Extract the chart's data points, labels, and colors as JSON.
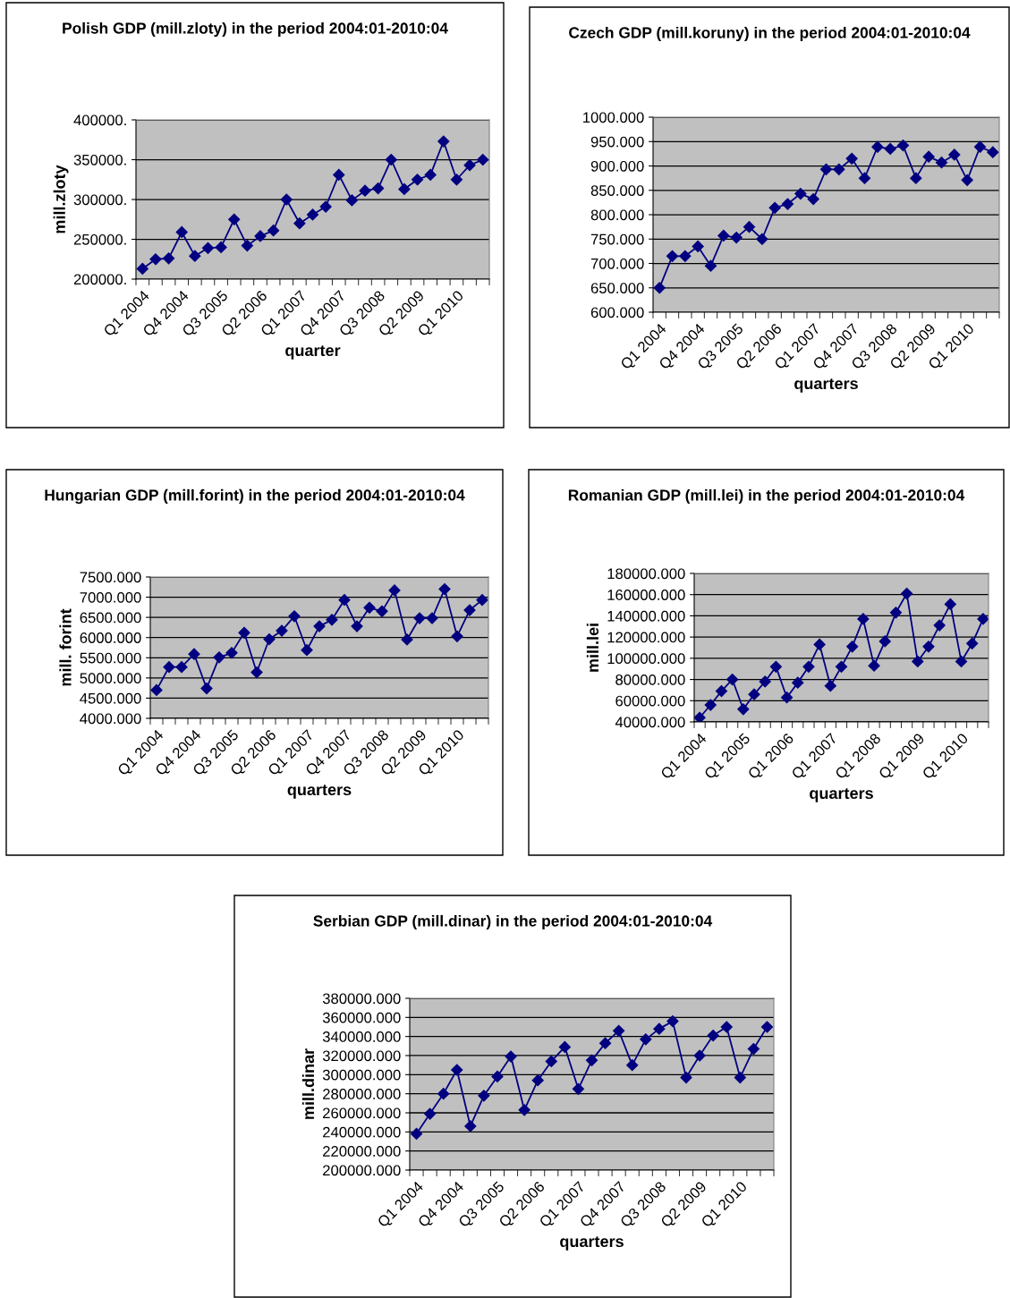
{
  "chart_data": [
    {
      "type": "line",
      "title": "Polish GDP (mill.zloty) in the period 2004:01-2010:04",
      "xlabel": "quarter",
      "ylabel": "mill.zloty",
      "marker": "diamond",
      "grid": "y",
      "categories": [
        "Q1 2004",
        null,
        null,
        "Q4 2004",
        null,
        null,
        "Q3 2005",
        null,
        null,
        "Q2 2006",
        null,
        null,
        "Q1 2007",
        null,
        null,
        "Q4 2007",
        null,
        null,
        "Q3 2008",
        null,
        null,
        "Q2 2009",
        null,
        null,
        "Q1 2010",
        null,
        null
      ],
      "ylim": [
        200000,
        400000
      ],
      "yticks": [
        {
          "value": 200000,
          "label": "200000."
        },
        {
          "value": 250000,
          "label": "250000."
        },
        {
          "value": 300000,
          "label": "300000."
        },
        {
          "value": 350000,
          "label": "350000."
        },
        {
          "value": 400000,
          "label": "400000."
        }
      ],
      "series": [
        {
          "color": "#000080",
          "values": [
            213000,
            225000,
            226000,
            259000,
            229000,
            239000,
            240000,
            275000,
            242000,
            254000,
            261000,
            300000,
            270000,
            281000,
            291000,
            331000,
            299000,
            311000,
            314000,
            350000,
            313000,
            325000,
            331000,
            373000,
            325000,
            343000,
            350000
          ]
        }
      ]
    },
    {
      "type": "line",
      "title": "Czech GDP (mill.koruny) in the period 2004:01-2010:04",
      "xlabel": "quarters",
      "marker": "diamond",
      "grid": "y",
      "categories": [
        "Q1 2004",
        null,
        null,
        "Q4 2004",
        null,
        null,
        "Q3 2005",
        null,
        null,
        "Q2 2006",
        null,
        null,
        "Q1 2007",
        null,
        null,
        "Q4 2007",
        null,
        null,
        "Q3 2008",
        null,
        null,
        "Q2 2009",
        null,
        null,
        "Q1 2010",
        null,
        null
      ],
      "ylim": [
        600,
        1000
      ],
      "yticks": [
        {
          "value": 600,
          "label": "600.000"
        },
        {
          "value": 650,
          "label": "650.000"
        },
        {
          "value": 700,
          "label": "700.000"
        },
        {
          "value": 750,
          "label": "750.000"
        },
        {
          "value": 800,
          "label": "800.000"
        },
        {
          "value": 850,
          "label": "850.000"
        },
        {
          "value": 900,
          "label": "900.000"
        },
        {
          "value": 950,
          "label": "950.000"
        },
        {
          "value": 1000,
          "label": "1000.000"
        }
      ],
      "series": [
        {
          "color": "#000080",
          "values": [
            650,
            715,
            715,
            735,
            695,
            757,
            753,
            775,
            750,
            814,
            822,
            843,
            832,
            893,
            893,
            915,
            875,
            939,
            935,
            942,
            875,
            919,
            907,
            923,
            871,
            939,
            928
          ]
        }
      ]
    },
    {
      "type": "line",
      "title": "Hungarian GDP (mill.forint) in the period 2004:01-2010:04",
      "xlabel": "quarters",
      "ylabel": "mill. forint",
      "marker": "diamond",
      "grid": "y",
      "categories": [
        "Q1 2004",
        null,
        null,
        "Q4 2004",
        null,
        null,
        "Q3 2005",
        null,
        null,
        "Q2 2006",
        null,
        null,
        "Q1 2007",
        null,
        null,
        "Q4 2007",
        null,
        null,
        "Q3 2008",
        null,
        null,
        "Q2 2009",
        null,
        null,
        "Q1 2010",
        null,
        null
      ],
      "ylim": [
        4000,
        7500
      ],
      "yticks": [
        {
          "value": 4000,
          "label": "4000.000"
        },
        {
          "value": 4500,
          "label": "4500.000"
        },
        {
          "value": 5000,
          "label": "5000.000"
        },
        {
          "value": 5500,
          "label": "5500.000"
        },
        {
          "value": 6000,
          "label": "6000.000"
        },
        {
          "value": 6500,
          "label": "6500.000"
        },
        {
          "value": 7000,
          "label": "7000.000"
        },
        {
          "value": 7500,
          "label": "7500.000"
        }
      ],
      "series": [
        {
          "color": "#000080",
          "values": [
            4700,
            5270,
            5270,
            5590,
            4740,
            5510,
            5620,
            6120,
            5140,
            5960,
            6170,
            6530,
            5690,
            6280,
            6440,
            6930,
            6280,
            6740,
            6650,
            7170,
            5950,
            6480,
            6480,
            7200,
            6030,
            6680,
            6930
          ]
        }
      ]
    },
    {
      "type": "line",
      "title": "Romanian GDP (mill.lei) in the period 2004:01-2010:04",
      "xlabel": "quarters",
      "ylabel": "mill.lei",
      "marker": "diamond",
      "grid": "y",
      "categories": [
        "Q1 2004",
        null,
        null,
        null,
        "Q1 2005",
        null,
        null,
        null,
        "Q1 2006",
        null,
        null,
        null,
        "Q1 2007",
        null,
        null,
        null,
        "Q1 2008",
        null,
        null,
        null,
        "Q1 2009",
        null,
        null,
        null,
        "Q1 2010",
        null,
        null
      ],
      "ylim": [
        40000,
        180000
      ],
      "yticks": [
        {
          "value": 40000,
          "label": "40000.000"
        },
        {
          "value": 60000,
          "label": "60000.000"
        },
        {
          "value": 80000,
          "label": "80000.000"
        },
        {
          "value": 100000,
          "label": "100000.000"
        },
        {
          "value": 120000,
          "label": "120000.000"
        },
        {
          "value": 140000,
          "label": "140000.000"
        },
        {
          "value": 160000,
          "label": "160000.000"
        },
        {
          "value": 180000,
          "label": "180000.000"
        }
      ],
      "series": [
        {
          "color": "#000080",
          "values": [
            44000,
            56000,
            69000,
            80000,
            52000,
            66000,
            78000,
            92000,
            63000,
            77000,
            92000,
            113000,
            74000,
            92000,
            111000,
            137000,
            93000,
            116000,
            143000,
            161000,
            97000,
            111000,
            131000,
            151000,
            97000,
            114000,
            137000
          ]
        }
      ]
    },
    {
      "type": "line",
      "title": "Serbian GDP (mill.dinar) in the period 2004:01-2010:04",
      "xlabel": "quarters",
      "ylabel": "mill.dinar",
      "marker": "diamond",
      "grid": "y",
      "categories": [
        "Q1 2004",
        null,
        null,
        "Q4 2004",
        null,
        null,
        "Q3 2005",
        null,
        null,
        "Q2 2006",
        null,
        null,
        "Q1 2007",
        null,
        null,
        "Q4 2007",
        null,
        null,
        "Q3 2008",
        null,
        null,
        "Q2 2009",
        null,
        null,
        "Q1 2010",
        null,
        null
      ],
      "ylim": [
        200000,
        380000
      ],
      "yticks": [
        {
          "value": 200000,
          "label": "200000.000"
        },
        {
          "value": 220000,
          "label": "220000.000"
        },
        {
          "value": 240000,
          "label": "240000.000"
        },
        {
          "value": 260000,
          "label": "260000.000"
        },
        {
          "value": 280000,
          "label": "280000.000"
        },
        {
          "value": 300000,
          "label": "300000.000"
        },
        {
          "value": 320000,
          "label": "320000.000"
        },
        {
          "value": 340000,
          "label": "340000.000"
        },
        {
          "value": 360000,
          "label": "360000.000"
        },
        {
          "value": 380000,
          "label": "380000.000"
        }
      ],
      "series": [
        {
          "color": "#000080",
          "values": [
            238000,
            259000,
            280000,
            305000,
            246000,
            278000,
            298000,
            319000,
            263000,
            294000,
            314000,
            329000,
            285000,
            315000,
            333000,
            346000,
            310000,
            337000,
            348000,
            356000,
            297000,
            320000,
            341000,
            350000,
            297000,
            327000,
            350000
          ]
        }
      ]
    }
  ]
}
